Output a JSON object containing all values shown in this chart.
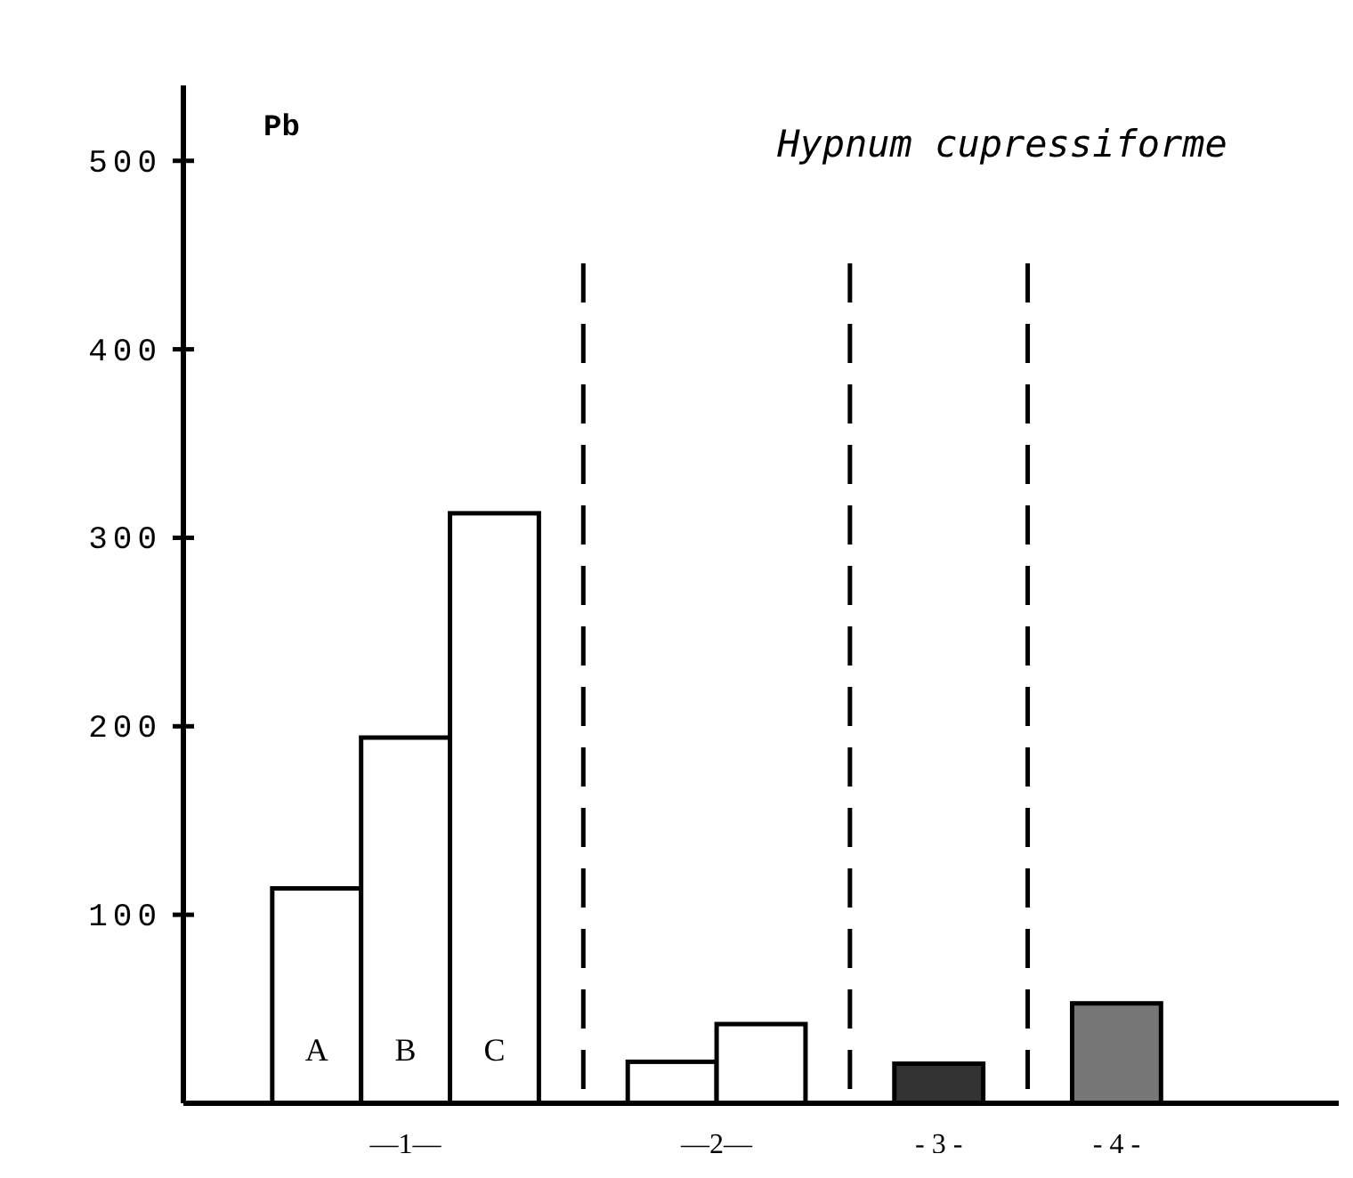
{
  "chart_data": {
    "type": "bar",
    "title": "Hypnum cupressiforme",
    "ylabel": "Pb",
    "categories": [
      null,
      "A",
      "B",
      "C",
      null,
      null,
      null,
      null,
      null,
      null,
      null,
      null,
      null
    ],
    "values": [
      null,
      114,
      194,
      313,
      null,
      22,
      42,
      null,
      21,
      null,
      53,
      null,
      null
    ],
    "colors": [
      null,
      "#ffffff",
      "#ffffff",
      "#ffffff",
      null,
      "#ffffff",
      "#ffffff",
      null,
      "#333333",
      null,
      "#777777",
      null,
      null
    ],
    "ylim": [
      0,
      540
    ],
    "yticks": [
      100,
      200,
      300,
      400,
      500
    ],
    "annotations": [
      "—1—",
      "—2—",
      "- 3 -",
      "- 4 -"
    ]
  }
}
